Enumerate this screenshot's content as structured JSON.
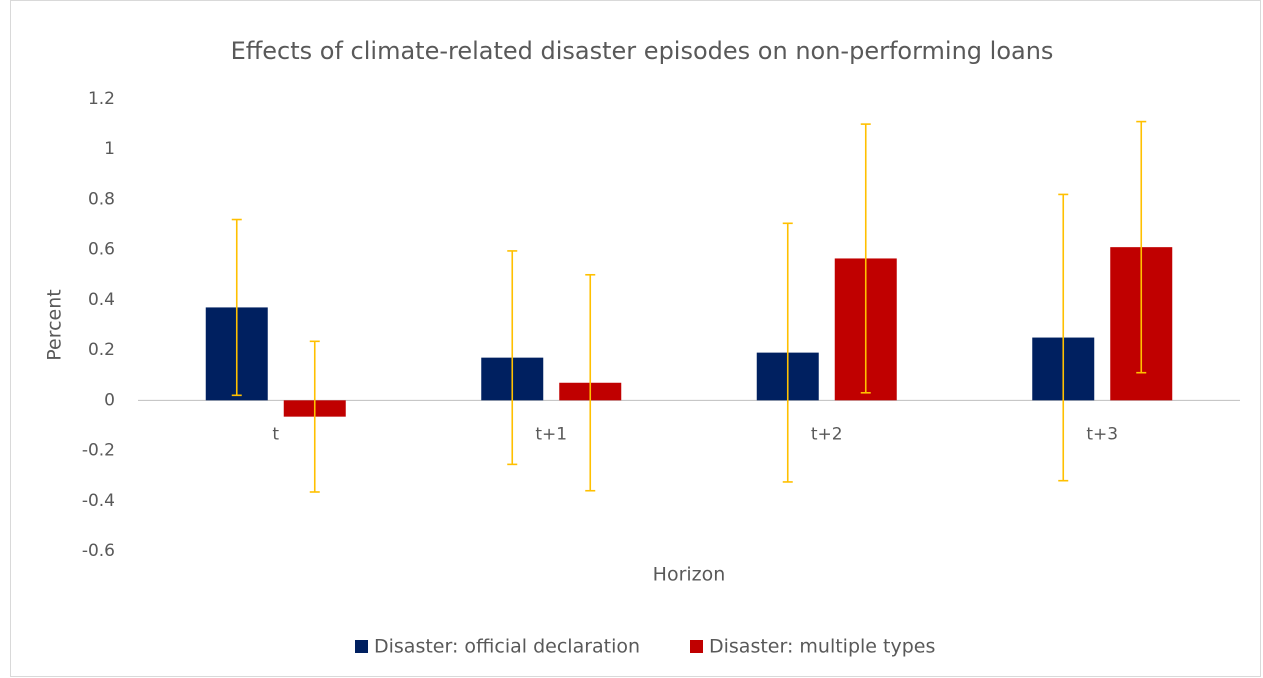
{
  "chart_data": {
    "type": "bar",
    "title": "Effects of climate-related disaster episodes on non-performing loans",
    "x_label": "Horizon",
    "y_label": "Percent",
    "categories": [
      "t",
      "t+1",
      "t+2",
      "t+3"
    ],
    "series": [
      {
        "name": "Disaster: official declaration",
        "color": "#002060",
        "values": [
          0.37,
          0.17,
          0.19,
          0.25
        ],
        "errors": [
          0.35,
          0.425,
          0.515,
          0.57
        ]
      },
      {
        "name": "Disaster: multiple types",
        "color": "#c00000",
        "values": [
          -0.065,
          0.07,
          0.565,
          0.61
        ],
        "errors": [
          0.3,
          0.43,
          0.535,
          0.5
        ]
      }
    ],
    "error_color": "#ffc000",
    "ylim": [
      -0.6,
      1.2
    ],
    "yticks": [
      -0.6,
      -0.4,
      -0.2,
      0,
      0.2,
      0.4,
      0.6,
      0.8,
      1,
      1.2
    ],
    "grid": false,
    "legend": "bottom"
  }
}
